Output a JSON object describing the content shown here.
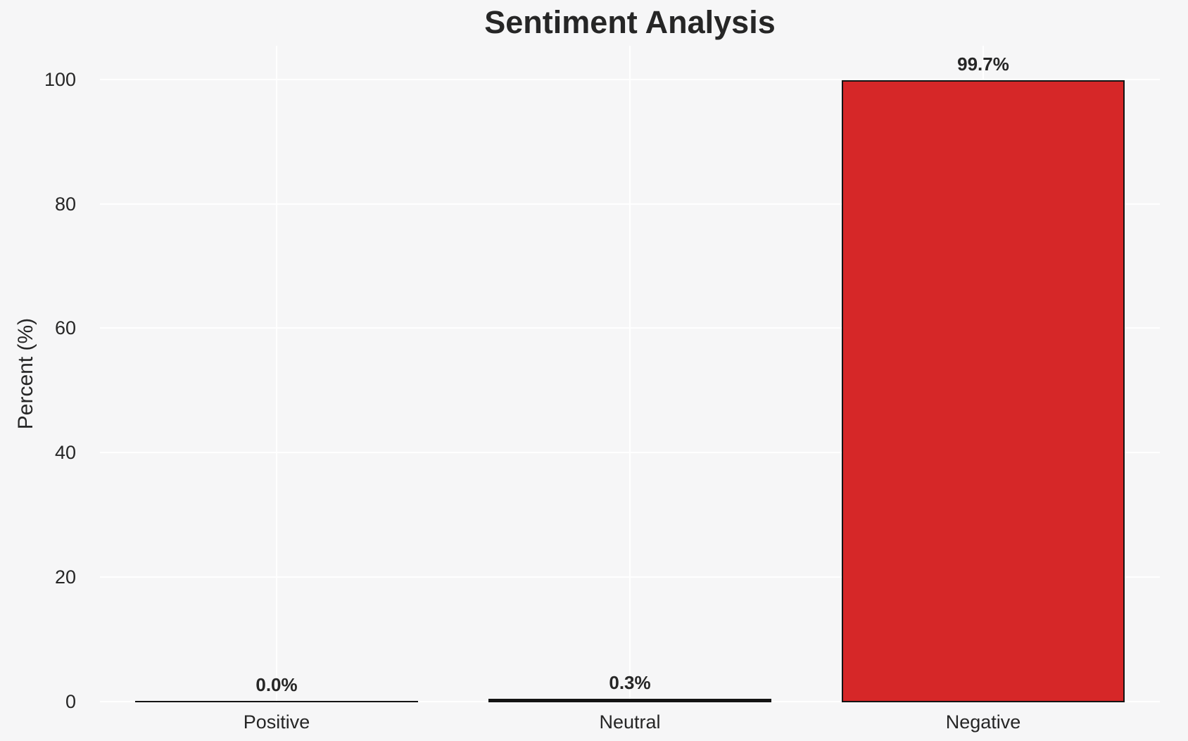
{
  "chart_data": {
    "type": "bar",
    "title": "Sentiment Analysis",
    "xlabel": "",
    "ylabel": "Percent (%)",
    "categories": [
      "Positive",
      "Neutral",
      "Negative"
    ],
    "values": [
      0.0,
      0.3,
      99.7
    ],
    "value_labels": [
      "0.0%",
      "0.3%",
      "99.7%"
    ],
    "yticks": [
      0,
      20,
      40,
      60,
      80,
      100
    ],
    "ylim": [
      0,
      105.4
    ],
    "grid": true,
    "legend": false,
    "bar_width_fraction": 0.8,
    "colors": {
      "background": "#f6f6f7",
      "gridline": "#ffffff",
      "bar_fill": "#d62728",
      "bar_edge": "#141414",
      "text": "#262626"
    }
  }
}
